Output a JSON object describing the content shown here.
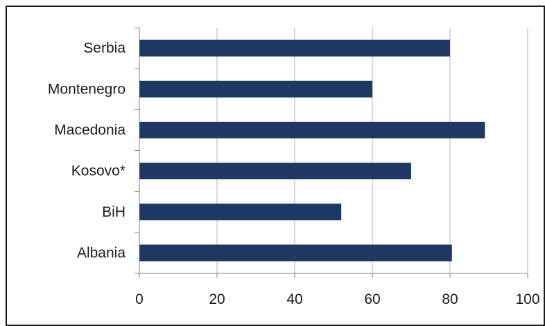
{
  "chart_data": {
    "type": "bar",
    "orientation": "horizontal",
    "categories": [
      "Serbia",
      "Montenegro",
      "Macedonia",
      "Kosovo*",
      "BiH",
      "Albania"
    ],
    "values": [
      80,
      60,
      89,
      70,
      52,
      80.5
    ],
    "xlim": [
      0,
      100
    ],
    "xticks": [
      0,
      20,
      40,
      60,
      80,
      100
    ],
    "title": "",
    "xlabel": "",
    "ylabel": "",
    "grid": "vertical",
    "legend": "none",
    "bar_color": "#1f3864",
    "grid_color": "#b0b0b0",
    "axis_color": "#7f7f7f",
    "frame_color": "#1a1a1a"
  }
}
